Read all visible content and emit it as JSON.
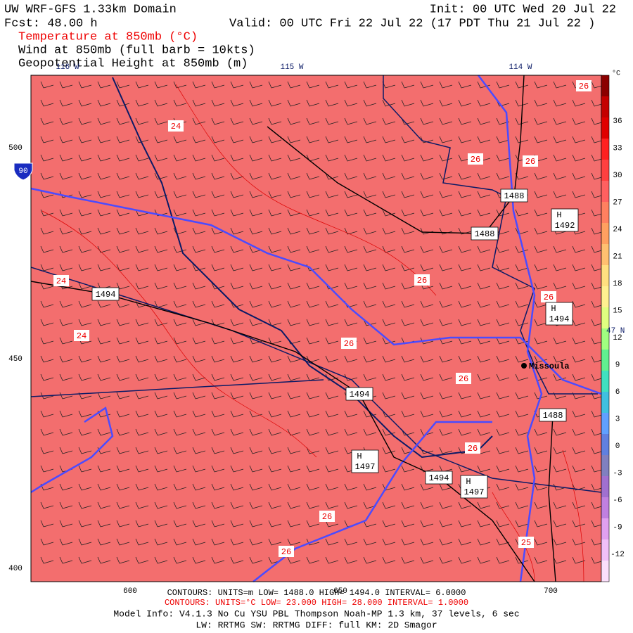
{
  "header": {
    "title": "UW WRF-GFS 1.33km Domain",
    "init": "Init: 00 UTC Wed 20 Jul 22",
    "fcst": "Fcst:   48.00 h",
    "valid": "Valid: 00 UTC Fri 22 Jul 22   (17 PDT Thu 21 Jul 22  )",
    "fields": [
      "Temperature at 850mb (°C)",
      "Wind at 850mb (full barb = 10kts)",
      "Geopotential Height at 850mb (m)"
    ]
  },
  "map": {
    "lon_labels": [
      "116 W",
      "115 W",
      "114 W"
    ],
    "lat_label": "47 N",
    "y_labels": [
      "500",
      "450",
      "400"
    ],
    "x_labels": [
      "600",
      "650",
      "700"
    ],
    "interstate": "90",
    "city": "Missoula",
    "temperature_labels": [
      "24",
      "24",
      "24",
      "26",
      "26",
      "26",
      "26",
      "26",
      "26",
      "26",
      "26",
      "26",
      "25",
      "26"
    ],
    "height_labels": [
      "1494",
      "1488",
      "1488",
      "1494",
      "1488",
      "1494"
    ],
    "highs": [
      {
        "marker": "H",
        "value": "1492"
      },
      {
        "marker": "H",
        "value": "1494"
      },
      {
        "marker": "H",
        "value": "1497"
      },
      {
        "marker": "H",
        "value": "1497"
      }
    ]
  },
  "colorbar": {
    "unit": "°C",
    "labels": [
      "36",
      "33",
      "30",
      "27",
      "24",
      "21",
      "18",
      "15",
      "12",
      "9",
      "6",
      "3",
      "0",
      "-3",
      "-6",
      "-9",
      "-12"
    ]
  },
  "footer": {
    "height_contours": "CONTOURS:  UNITS=m  LOW=  1488.0    HIGH=  1494.0    INTERVAL=   6.0000",
    "temp_contours": "CONTOURS:  UNITS=°C  LOW=  23.000   HIGH=  28.000   INTERVAL=   1.0000",
    "model_info": "Model Info: V4.1.3   No Cu   YSU PBL  Thompson   Noah-MP   1.3 km,   37 levels,   6 sec",
    "physics": "LW: RRTMG  SW: RRTMG   DIFF: full   KM: 2D Smagor"
  }
}
